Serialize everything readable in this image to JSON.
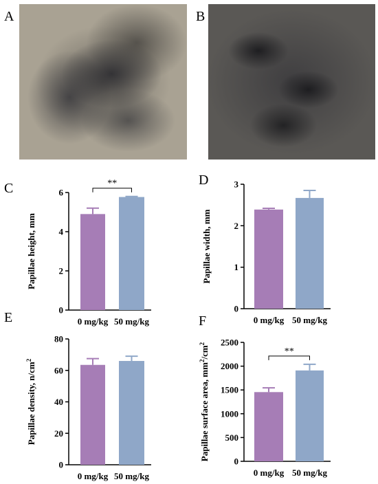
{
  "panels": {
    "a": {
      "letter": "A"
    },
    "b": {
      "letter": "B"
    }
  },
  "colors": {
    "purple": "#a67db6",
    "blue": "#8fa7c8"
  },
  "chart_data": [
    {
      "id": "c",
      "letter": "C",
      "type": "bar",
      "categories": [
        "0 mg/kg",
        "50 mg/kg"
      ],
      "values": [
        4.9,
        5.77
      ],
      "errors": [
        0.3,
        0.03
      ],
      "ylabel": "Papillae height, mm",
      "ylabel_sup": "",
      "ylabel_tail": "",
      "ylim": [
        0,
        6
      ],
      "yticks": [
        0,
        2,
        4,
        6
      ],
      "annotation": "**"
    },
    {
      "id": "d",
      "letter": "D",
      "type": "bar",
      "categories": [
        "0 mg/kg",
        "50 mg/kg"
      ],
      "values": [
        2.39,
        2.67
      ],
      "errors": [
        0.03,
        0.18
      ],
      "ylabel": "Papillae width, mm",
      "ylabel_sup": "",
      "ylabel_tail": "",
      "ylim": [
        0,
        3
      ],
      "yticks": [
        0,
        1,
        2,
        3
      ],
      "annotation": ""
    },
    {
      "id": "e",
      "letter": "E",
      "type": "bar",
      "categories": [
        "0 mg/kg",
        "50 mg/kg"
      ],
      "values": [
        63.5,
        66
      ],
      "errors": [
        4,
        3
      ],
      "ylabel": "Papillae density, n/cm",
      "ylabel_sup": "2",
      "ylabel_tail": "",
      "ylim": [
        0,
        80
      ],
      "yticks": [
        0,
        20,
        40,
        60,
        80
      ],
      "annotation": ""
    },
    {
      "id": "f",
      "letter": "F",
      "type": "bar",
      "categories": [
        "0 mg/kg",
        "50 mg/kg"
      ],
      "values": [
        1455,
        1910
      ],
      "errors": [
        90,
        130
      ],
      "ylabel": "Papillae surface area, mm",
      "ylabel_sup": "2",
      "ylabel_tail": "/cm",
      "ylabel_sup2": "2",
      "ylim": [
        0,
        2500
      ],
      "yticks": [
        0,
        500,
        1000,
        1500,
        2000,
        2500
      ],
      "annotation": "**"
    }
  ]
}
